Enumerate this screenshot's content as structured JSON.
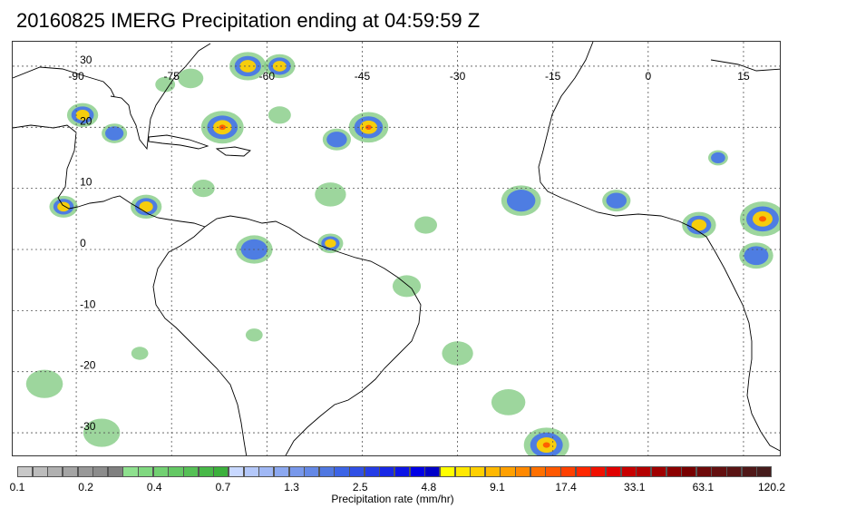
{
  "title": "20160825 IMERG Precipitation ending at 04:59:59 Z",
  "map": {
    "longitude_labels": [
      "-90",
      "-75",
      "-60",
      "-45",
      "-30",
      "-15",
      "0",
      "15"
    ],
    "latitude_labels": [
      "30",
      "20",
      "10",
      "0",
      "-10",
      "-20",
      "-30"
    ],
    "lon_range": [
      -100,
      21
    ],
    "lat_range": [
      -34,
      34
    ],
    "grid": true
  },
  "colorbar": {
    "ticks": [
      "0.1",
      "0.2",
      "0.4",
      "0.7",
      "1.3",
      "2.5",
      "4.8",
      "9.1",
      "17.4",
      "33.1",
      "63.1",
      "120.2"
    ],
    "label": "Precipitation rate (mm/hr)",
    "colors": [
      "#c8c8c8",
      "#bcbcbc",
      "#b0b0b0",
      "#a4a4a4",
      "#989898",
      "#8c8c8c",
      "#808080",
      "#8ee08e",
      "#80d880",
      "#72d072",
      "#64c864",
      "#56c056",
      "#48b848",
      "#3cb03c",
      "#c8d8ff",
      "#b4c8fa",
      "#a0b8f5",
      "#8ca8f0",
      "#7898eb",
      "#6488e6",
      "#5078e1",
      "#3c64e6",
      "#3050e6",
      "#243ce6",
      "#1828e6",
      "#0c14e6",
      "#0000e6",
      "#0000c8",
      "#ffff00",
      "#ffe800",
      "#ffd000",
      "#ffb800",
      "#ffa000",
      "#ff8800",
      "#ff7000",
      "#ff5800",
      "#ff4000",
      "#ff2800",
      "#f01000",
      "#e00000",
      "#c80000",
      "#b40000",
      "#a00000",
      "#8c0000",
      "#780000",
      "#6e0a0a",
      "#641010",
      "#5a1414",
      "#501818",
      "#461c1c"
    ]
  },
  "colors": {
    "land_outline": "#000000",
    "grid": "#555555",
    "light_rain": "#7cc87c",
    "moderate_rain": "#4a78e6",
    "heavy_rain": "#ffd200",
    "very_heavy_rain": "#ff5a00"
  },
  "rain_cells": [
    {
      "lon": -89,
      "lat": 22,
      "r": 2.2,
      "level": 3
    },
    {
      "lon": -84,
      "lat": 19,
      "r": 1.8,
      "level": 2
    },
    {
      "lon": -67,
      "lat": 20,
      "r": 3.0,
      "level": 4
    },
    {
      "lon": -63,
      "lat": 30,
      "r": 2.6,
      "level": 3
    },
    {
      "lon": -58,
      "lat": 30,
      "r": 2.2,
      "level": 3
    },
    {
      "lon": -44,
      "lat": 20,
      "r": 2.8,
      "level": 4
    },
    {
      "lon": -49,
      "lat": 18,
      "r": 2.0,
      "level": 2
    },
    {
      "lon": -79,
      "lat": 7,
      "r": 2.2,
      "level": 3
    },
    {
      "lon": -92,
      "lat": 7,
      "r": 2.0,
      "level": 3
    },
    {
      "lon": -62,
      "lat": 0,
      "r": 2.6,
      "level": 2
    },
    {
      "lon": -50,
      "lat": 1,
      "r": 1.8,
      "level": 3
    },
    {
      "lon": -20,
      "lat": 8,
      "r": 2.8,
      "level": 2
    },
    {
      "lon": -5,
      "lat": 8,
      "r": 2.0,
      "level": 2
    },
    {
      "lon": 8,
      "lat": 4,
      "r": 2.4,
      "level": 3
    },
    {
      "lon": 18,
      "lat": 5,
      "r": 3.2,
      "level": 4
    },
    {
      "lon": 17,
      "lat": -1,
      "r": 2.4,
      "level": 2
    },
    {
      "lon": 11,
      "lat": 15,
      "r": 1.4,
      "level": 2
    },
    {
      "lon": -16,
      "lat": -32,
      "r": 3.2,
      "level": 4
    },
    {
      "lon": -22,
      "lat": -25,
      "r": 2.4,
      "level": 1
    },
    {
      "lon": -30,
      "lat": -17,
      "r": 2.2,
      "level": 1
    },
    {
      "lon": -95,
      "lat": -22,
      "r": 2.6,
      "level": 1
    },
    {
      "lon": -86,
      "lat": -30,
      "r": 2.6,
      "level": 1
    },
    {
      "lon": -38,
      "lat": -6,
      "r": 2.0,
      "level": 1
    },
    {
      "lon": -50,
      "lat": 9,
      "r": 2.2,
      "level": 1
    },
    {
      "lon": -72,
      "lat": 28,
      "r": 1.8,
      "level": 1
    },
    {
      "lon": -35,
      "lat": 4,
      "r": 1.6,
      "level": 1
    },
    {
      "lon": -70,
      "lat": 10,
      "r": 1.6,
      "level": 1
    },
    {
      "lon": -76,
      "lat": 27,
      "r": 1.4,
      "level": 1
    },
    {
      "lon": -58,
      "lat": 22,
      "r": 1.6,
      "level": 1
    },
    {
      "lon": -62,
      "lat": -14,
      "r": 1.2,
      "level": 1
    },
    {
      "lon": -80,
      "lat": -17,
      "r": 1.2,
      "level": 1
    }
  ]
}
